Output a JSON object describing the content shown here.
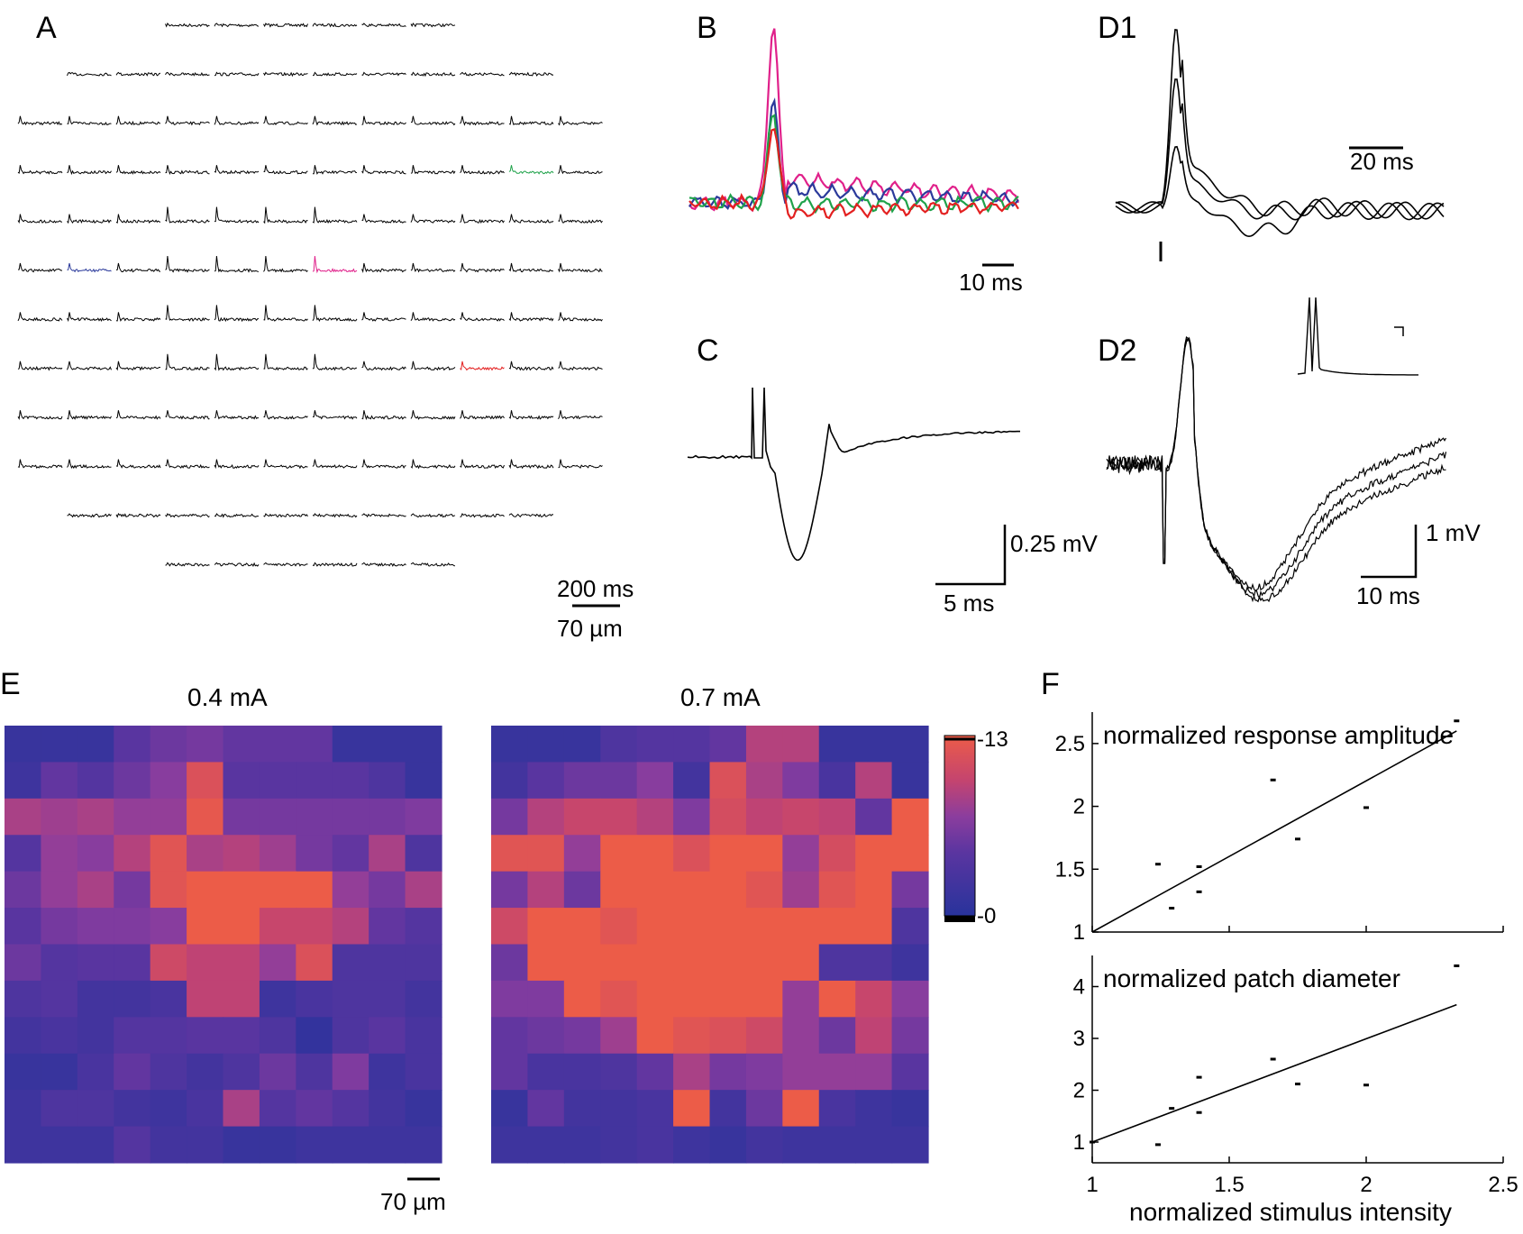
{
  "panels": {
    "A": {
      "label": "A",
      "scale_time": "200 ms",
      "scale_space": "70 µm",
      "grid_rows": [
        {
          "start_col": 3,
          "count": 6
        },
        {
          "start_col": 1,
          "count": 10
        },
        {
          "start_col": 0,
          "count": 12
        },
        {
          "start_col": 0,
          "count": 12
        },
        {
          "start_col": 0,
          "count": 12
        },
        {
          "start_col": 0,
          "count": 12
        },
        {
          "start_col": 0,
          "count": 12
        },
        {
          "start_col": 0,
          "count": 12
        },
        {
          "start_col": 0,
          "count": 12
        },
        {
          "start_col": 0,
          "count": 12
        },
        {
          "start_col": 1,
          "count": 10
        },
        {
          "start_col": 3,
          "count": 6
        }
      ],
      "highlighted_traces": [
        {
          "row": 3,
          "col": 10,
          "color": "#1fa24a"
        },
        {
          "row": 5,
          "col": 1,
          "color": "#2b3a9b"
        },
        {
          "row": 5,
          "col": 6,
          "color": "#e0208a"
        },
        {
          "row": 7,
          "col": 9,
          "color": "#e32020"
        }
      ]
    },
    "B": {
      "label": "B",
      "scale_time": "10 ms",
      "series": [
        {
          "name": "magenta",
          "color": "#e0208a",
          "peak": 1.0
        },
        {
          "name": "blue",
          "color": "#2b3a9b",
          "peak": 0.55
        },
        {
          "name": "green",
          "color": "#1fa24a",
          "peak": 0.5
        },
        {
          "name": "red",
          "color": "#e32020",
          "peak": 0.45
        }
      ]
    },
    "C": {
      "label": "C",
      "scale_voltage": "0.25 mV",
      "scale_time": "5 ms"
    },
    "D1": {
      "label": "D1",
      "scale_time": "20 ms"
    },
    "D2": {
      "label": "D2",
      "scale_voltage": "1 mV",
      "scale_time": "10 ms"
    },
    "E": {
      "label": "E",
      "maps": [
        {
          "title": "0.4 mA"
        },
        {
          "title": "0.7 mA"
        }
      ],
      "colorbar": {
        "max_label": "-13",
        "min_label": "-0",
        "max": 13,
        "min": 0
      },
      "scale_space": "70 µm"
    },
    "F": {
      "label": "F"
    }
  },
  "chart_data": [
    {
      "type": "heatmap",
      "title": "0.4 mA",
      "range": [
        0,
        13
      ],
      "values": [
        [
          1.5,
          1.5,
          1.5,
          4.5,
          5.5,
          6.0,
          5.0,
          5.0,
          5.0,
          1.5,
          1.5,
          1.5
        ],
        [
          2.0,
          5.0,
          4.0,
          5.5,
          7.0,
          11.5,
          4.5,
          4.5,
          4.5,
          4.5,
          3.5,
          1.5
        ],
        [
          8.5,
          8.0,
          8.5,
          7.5,
          7.5,
          12.5,
          6.0,
          6.0,
          6.0,
          6.0,
          6.0,
          6.5
        ],
        [
          4.0,
          7.5,
          7.0,
          9.0,
          12.0,
          8.5,
          9.0,
          8.0,
          6.0,
          5.0,
          8.5,
          3.5
        ],
        [
          5.5,
          7.5,
          8.5,
          6.0,
          12.0,
          13.0,
          13.0,
          13.0,
          13.0,
          7.5,
          6.0,
          8.5
        ],
        [
          4.5,
          6.0,
          6.5,
          6.5,
          7.0,
          13.0,
          13.0,
          10.0,
          10.0,
          9.0,
          5.0,
          4.0
        ],
        [
          5.5,
          4.0,
          4.5,
          4.5,
          10.5,
          9.5,
          9.5,
          7.5,
          11.5,
          3.5,
          3.5,
          3.5
        ],
        [
          3.5,
          4.0,
          2.5,
          2.5,
          3.0,
          9.5,
          9.5,
          2.0,
          3.0,
          3.5,
          3.5,
          2.5
        ],
        [
          2.5,
          3.0,
          2.5,
          4.0,
          4.0,
          4.5,
          4.5,
          3.5,
          1.0,
          3.5,
          4.5,
          3.0
        ],
        [
          1.5,
          1.5,
          3.0,
          5.0,
          3.5,
          2.5,
          3.5,
          5.5,
          3.5,
          6.5,
          2.0,
          3.0
        ],
        [
          2.0,
          3.5,
          3.5,
          2.5,
          2.0,
          3.0,
          8.5,
          4.0,
          5.0,
          4.0,
          2.5,
          1.5
        ],
        [
          2.0,
          2.0,
          2.0,
          4.0,
          2.5,
          2.5,
          1.5,
          1.5,
          2.0,
          2.0,
          2.0,
          2.0
        ]
      ]
    },
    {
      "type": "heatmap",
      "title": "0.7 mA",
      "range": [
        0,
        13
      ],
      "values": [
        [
          1.5,
          1.5,
          1.5,
          3.5,
          4.0,
          4.0,
          5.0,
          9.0,
          9.0,
          1.5,
          1.5,
          1.5
        ],
        [
          2.5,
          4.5,
          5.5,
          5.5,
          7.0,
          2.5,
          11.5,
          8.5,
          6.5,
          3.0,
          9.0,
          1.5
        ],
        [
          6.0,
          9.0,
          10.0,
          10.0,
          9.0,
          6.5,
          11.0,
          9.5,
          10.0,
          9.5,
          5.0,
          13.0
        ],
        [
          12.0,
          12.0,
          7.5,
          13.0,
          13.0,
          11.5,
          13.0,
          13.0,
          7.5,
          11.0,
          13.0,
          13.0
        ],
        [
          6.0,
          9.0,
          5.5,
          13.0,
          13.0,
          13.0,
          13.0,
          12.0,
          8.0,
          12.0,
          13.0,
          6.0
        ],
        [
          10.5,
          13.0,
          13.0,
          12.0,
          13.0,
          13.0,
          13.0,
          13.0,
          13.0,
          13.0,
          13.0,
          3.5
        ],
        [
          5.5,
          13.0,
          13.0,
          13.0,
          13.0,
          13.0,
          13.0,
          13.0,
          13.0,
          3.5,
          3.5,
          2.0
        ],
        [
          6.5,
          6.5,
          13.0,
          12.0,
          13.0,
          13.0,
          13.0,
          13.0,
          7.5,
          13.0,
          10.0,
          7.0
        ],
        [
          5.0,
          5.5,
          6.0,
          8.0,
          13.0,
          12.0,
          11.5,
          10.5,
          7.5,
          5.5,
          9.5,
          6.0
        ],
        [
          5.0,
          3.0,
          3.0,
          3.5,
          5.0,
          8.5,
          6.0,
          6.5,
          7.5,
          7.5,
          7.5,
          4.5
        ],
        [
          1.5,
          5.0,
          2.5,
          2.5,
          3.0,
          13.0,
          2.5,
          5.5,
          13.0,
          3.0,
          2.0,
          1.5
        ],
        [
          2.0,
          2.0,
          2.0,
          2.5,
          3.0,
          2.0,
          1.5,
          2.5,
          2.0,
          2.0,
          2.0,
          2.0
        ]
      ]
    },
    {
      "type": "scatter",
      "title": "normalized response amplitude",
      "xlabel": "normalized stimulus intensity",
      "xlim": [
        1,
        2.5
      ],
      "ylim": [
        1,
        2.75
      ],
      "yticks": [
        1,
        1.5,
        2,
        2.5
      ],
      "ytick_labels": [
        "1",
        "1.5",
        "2",
        "2.5"
      ],
      "x": [
        1.24,
        1.29,
        1.39,
        1.39,
        1.66,
        1.75,
        2.0,
        2.33
      ],
      "y": [
        1.54,
        1.19,
        1.52,
        1.32,
        2.21,
        1.74,
        1.99,
        2.68
      ],
      "fit": {
        "x": [
          1.0,
          2.33
        ],
        "y": [
          1.0,
          2.6
        ]
      }
    },
    {
      "type": "scatter",
      "title": "normalized patch diameter",
      "xlabel": "normalized stimulus intensity",
      "xlim": [
        1,
        2.5
      ],
      "ylim": [
        0.6,
        4.6
      ],
      "xticks": [
        1,
        1.5,
        2,
        2.5
      ],
      "xtick_labels": [
        "1",
        "1.5",
        "2",
        "2.5"
      ],
      "yticks": [
        1,
        2,
        3,
        4
      ],
      "ytick_labels": [
        "1",
        "2",
        "3",
        "4"
      ],
      "x": [
        1.0,
        1.24,
        1.29,
        1.39,
        1.39,
        1.66,
        1.75,
        2.0,
        2.33
      ],
      "y": [
        1.0,
        0.95,
        1.65,
        2.25,
        1.57,
        2.6,
        2.12,
        2.1,
        4.4
      ],
      "fit": {
        "x": [
          1.0,
          2.33
        ],
        "y": [
          1.0,
          3.65
        ]
      }
    }
  ]
}
